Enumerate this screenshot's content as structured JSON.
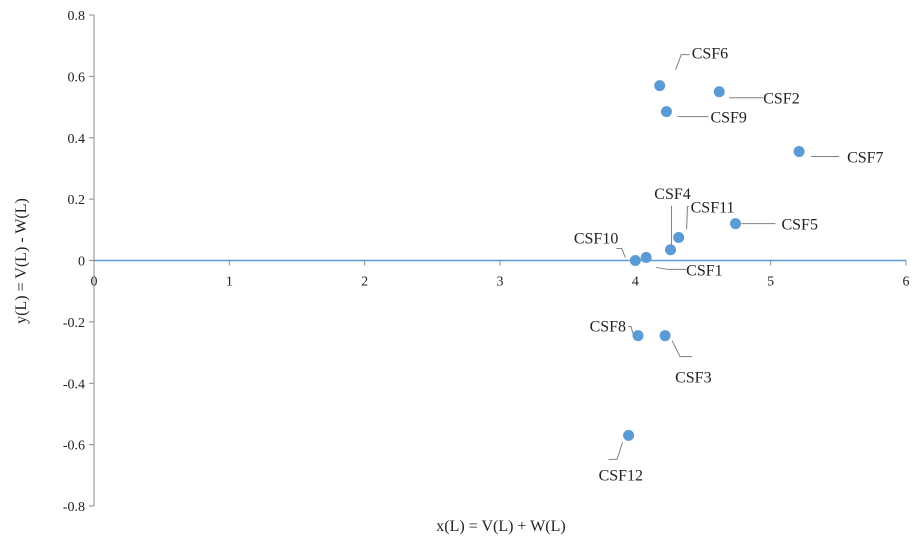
{
  "chart_data": {
    "type": "scatter",
    "xlabel": "x(L) = V(L) + W(L)",
    "ylabel": "y(L) = V(L) - W(L)",
    "xlim": [
      0,
      6
    ],
    "ylim": [
      -0.8,
      0.8
    ],
    "x_ticks": [
      "0",
      "1",
      "2",
      "3",
      "4",
      "5",
      "6"
    ],
    "y_ticks": [
      "0.8",
      "0.6",
      "0.4",
      "0.2",
      "0",
      "-0.2",
      "-0.4",
      "-0.6",
      "-0.8"
    ],
    "point_color": "#5b9bd5",
    "zero_line_color": "#5b9bd5",
    "grid": false,
    "points": [
      {
        "label": "CSF1",
        "x": 4.08,
        "y": 0.01
      },
      {
        "label": "CSF2",
        "x": 4.62,
        "y": 0.55
      },
      {
        "label": "CSF3",
        "x": 4.22,
        "y": -0.245
      },
      {
        "label": "CSF4",
        "x": 4.26,
        "y": 0.035
      },
      {
        "label": "CSF5",
        "x": 4.74,
        "y": 0.12
      },
      {
        "label": "CSF6",
        "x": 4.18,
        "y": 0.57
      },
      {
        "label": "CSF7",
        "x": 5.21,
        "y": 0.355
      },
      {
        "label": "CSF8",
        "x": 4.02,
        "y": -0.245
      },
      {
        "label": "CSF9",
        "x": 4.23,
        "y": 0.485
      },
      {
        "label": "CSF10",
        "x": 4.0,
        "y": 0.0
      },
      {
        "label": "CSF11",
        "x": 4.32,
        "y": 0.075
      },
      {
        "label": "CSF12",
        "x": 3.95,
        "y": -0.57
      }
    ]
  }
}
